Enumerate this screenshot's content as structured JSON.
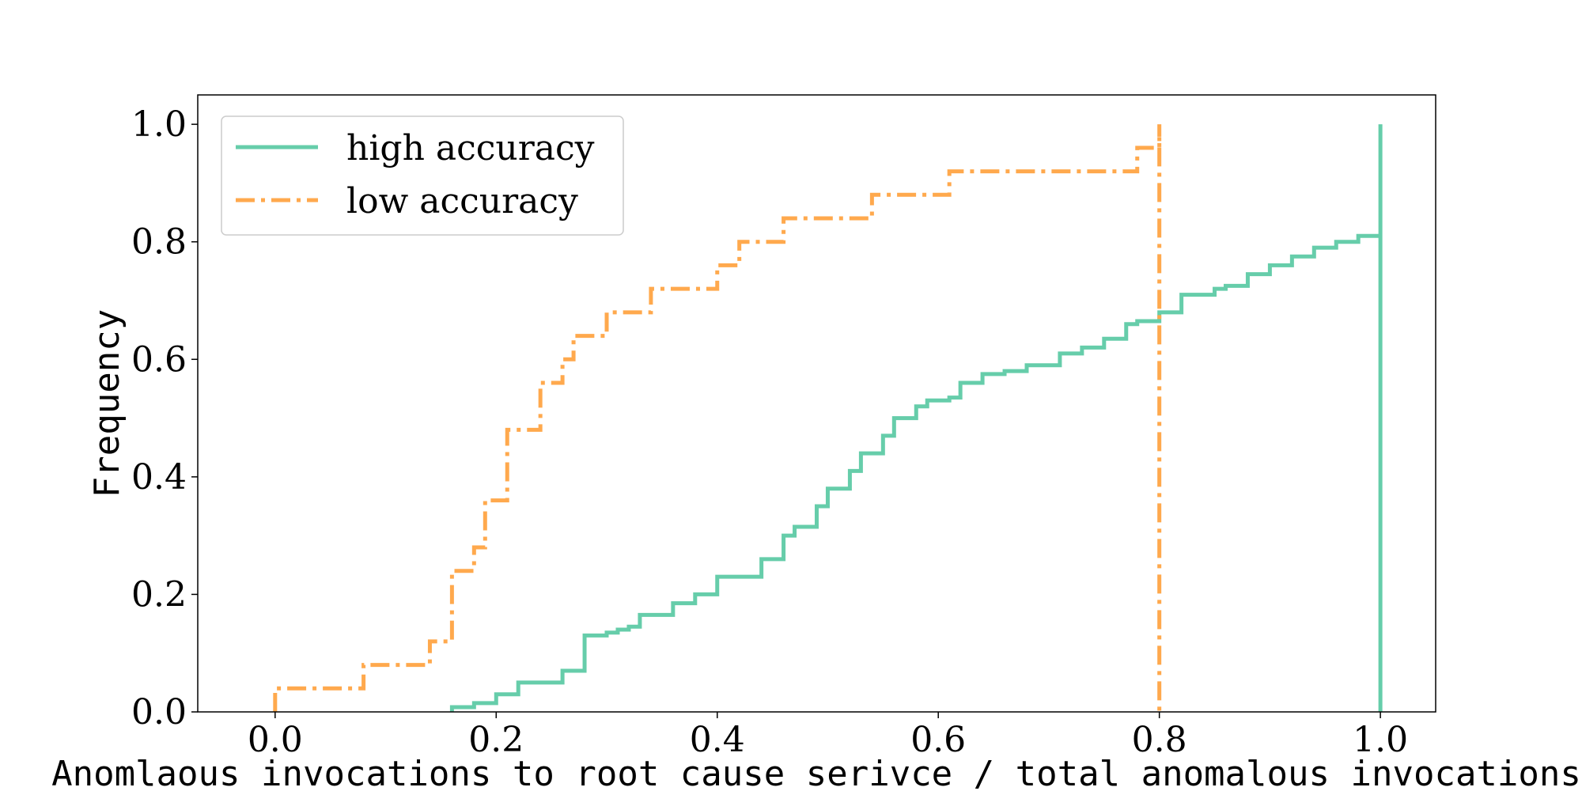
{
  "chart_data": {
    "type": "line",
    "title": "",
    "xlabel": "Anomlaous invocations to root cause serivce / total anomalous invocations",
    "ylabel": "Frequency",
    "xlim": [
      -0.07,
      1.05
    ],
    "ylim": [
      0.0,
      1.05
    ],
    "xticks": [
      "0.0",
      "0.2",
      "0.4",
      "0.6",
      "0.8",
      "1.0"
    ],
    "yticks": [
      "0.0",
      "0.2",
      "0.4",
      "0.6",
      "0.8",
      "1.0"
    ],
    "grid": false,
    "legend_position": "top-left",
    "step_type": "cumulative histogram (step)",
    "series": [
      {
        "name": "high accuracy",
        "color": "#66cdaa",
        "linestyle": "solid",
        "x": [
          0.16,
          0.18,
          0.2,
          0.22,
          0.25,
          0.26,
          0.28,
          0.3,
          0.31,
          0.32,
          0.33,
          0.36,
          0.38,
          0.4,
          0.44,
          0.46,
          0.47,
          0.49,
          0.5,
          0.52,
          0.53,
          0.55,
          0.56,
          0.58,
          0.59,
          0.61,
          0.62,
          0.64,
          0.66,
          0.68,
          0.71,
          0.73,
          0.75,
          0.77,
          0.78,
          0.8,
          0.82,
          0.85,
          0.86,
          0.88,
          0.9,
          0.92,
          0.94,
          0.96,
          0.98,
          1.0
        ],
        "y": [
          0.008,
          0.015,
          0.03,
          0.05,
          0.05,
          0.07,
          0.13,
          0.135,
          0.14,
          0.145,
          0.165,
          0.185,
          0.2,
          0.23,
          0.26,
          0.3,
          0.315,
          0.35,
          0.38,
          0.41,
          0.44,
          0.47,
          0.5,
          0.52,
          0.53,
          0.535,
          0.56,
          0.575,
          0.58,
          0.59,
          0.61,
          0.62,
          0.635,
          0.66,
          0.665,
          0.68,
          0.71,
          0.72,
          0.725,
          0.745,
          0.76,
          0.775,
          0.79,
          0.8,
          0.81,
          1.0
        ]
      },
      {
        "name": "low accuracy",
        "color": "#ffa94d",
        "linestyle": "dashdot",
        "x": [
          0.0,
          0.06,
          0.08,
          0.14,
          0.16,
          0.18,
          0.19,
          0.21,
          0.24,
          0.26,
          0.27,
          0.3,
          0.34,
          0.4,
          0.42,
          0.46,
          0.54,
          0.61,
          0.78,
          0.8
        ],
        "y": [
          0.04,
          0.04,
          0.08,
          0.12,
          0.24,
          0.28,
          0.36,
          0.48,
          0.56,
          0.6,
          0.64,
          0.68,
          0.72,
          0.76,
          0.8,
          0.84,
          0.88,
          0.92,
          0.96,
          1.0
        ]
      }
    ]
  }
}
